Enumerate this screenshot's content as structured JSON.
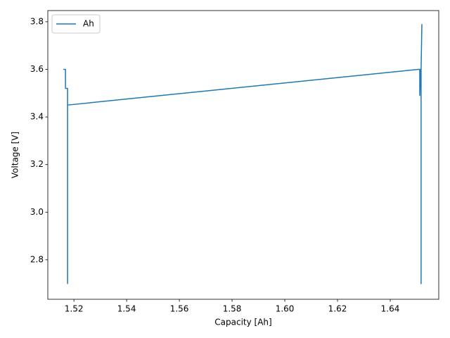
{
  "chart_data": {
    "type": "line",
    "x_label": "Capacity [Ah]",
    "y_label": "Voltage [V]",
    "x": [
      1.516,
      1.5168,
      1.5168,
      1.5176,
      1.5176,
      1.5176,
      1.6507,
      1.6512,
      1.6512,
      1.6515,
      1.6517,
      1.6517,
      1.6517,
      1.652
    ],
    "series": [
      {
        "name": "Ah",
        "color": "#1f77b4",
        "values": [
          3.6,
          3.6,
          3.52,
          3.52,
          2.7,
          3.45,
          3.6,
          3.6,
          3.49,
          3.6,
          3.6,
          2.7,
          3.6,
          3.79
        ]
      }
    ],
    "xlim": [
      1.5101,
      1.6584
    ],
    "ylim": [
      2.634,
      3.847
    ],
    "xticks": [
      1.52,
      1.54,
      1.56,
      1.58,
      {
        "value": 1.6,
        "label": "1.60"
      },
      1.62,
      1.64
    ],
    "yticks": [
      2.8,
      {
        "value": 3.0,
        "label": "3.0"
      },
      3.2,
      3.4,
      3.6,
      3.8
    ],
    "legend": "upper left"
  }
}
